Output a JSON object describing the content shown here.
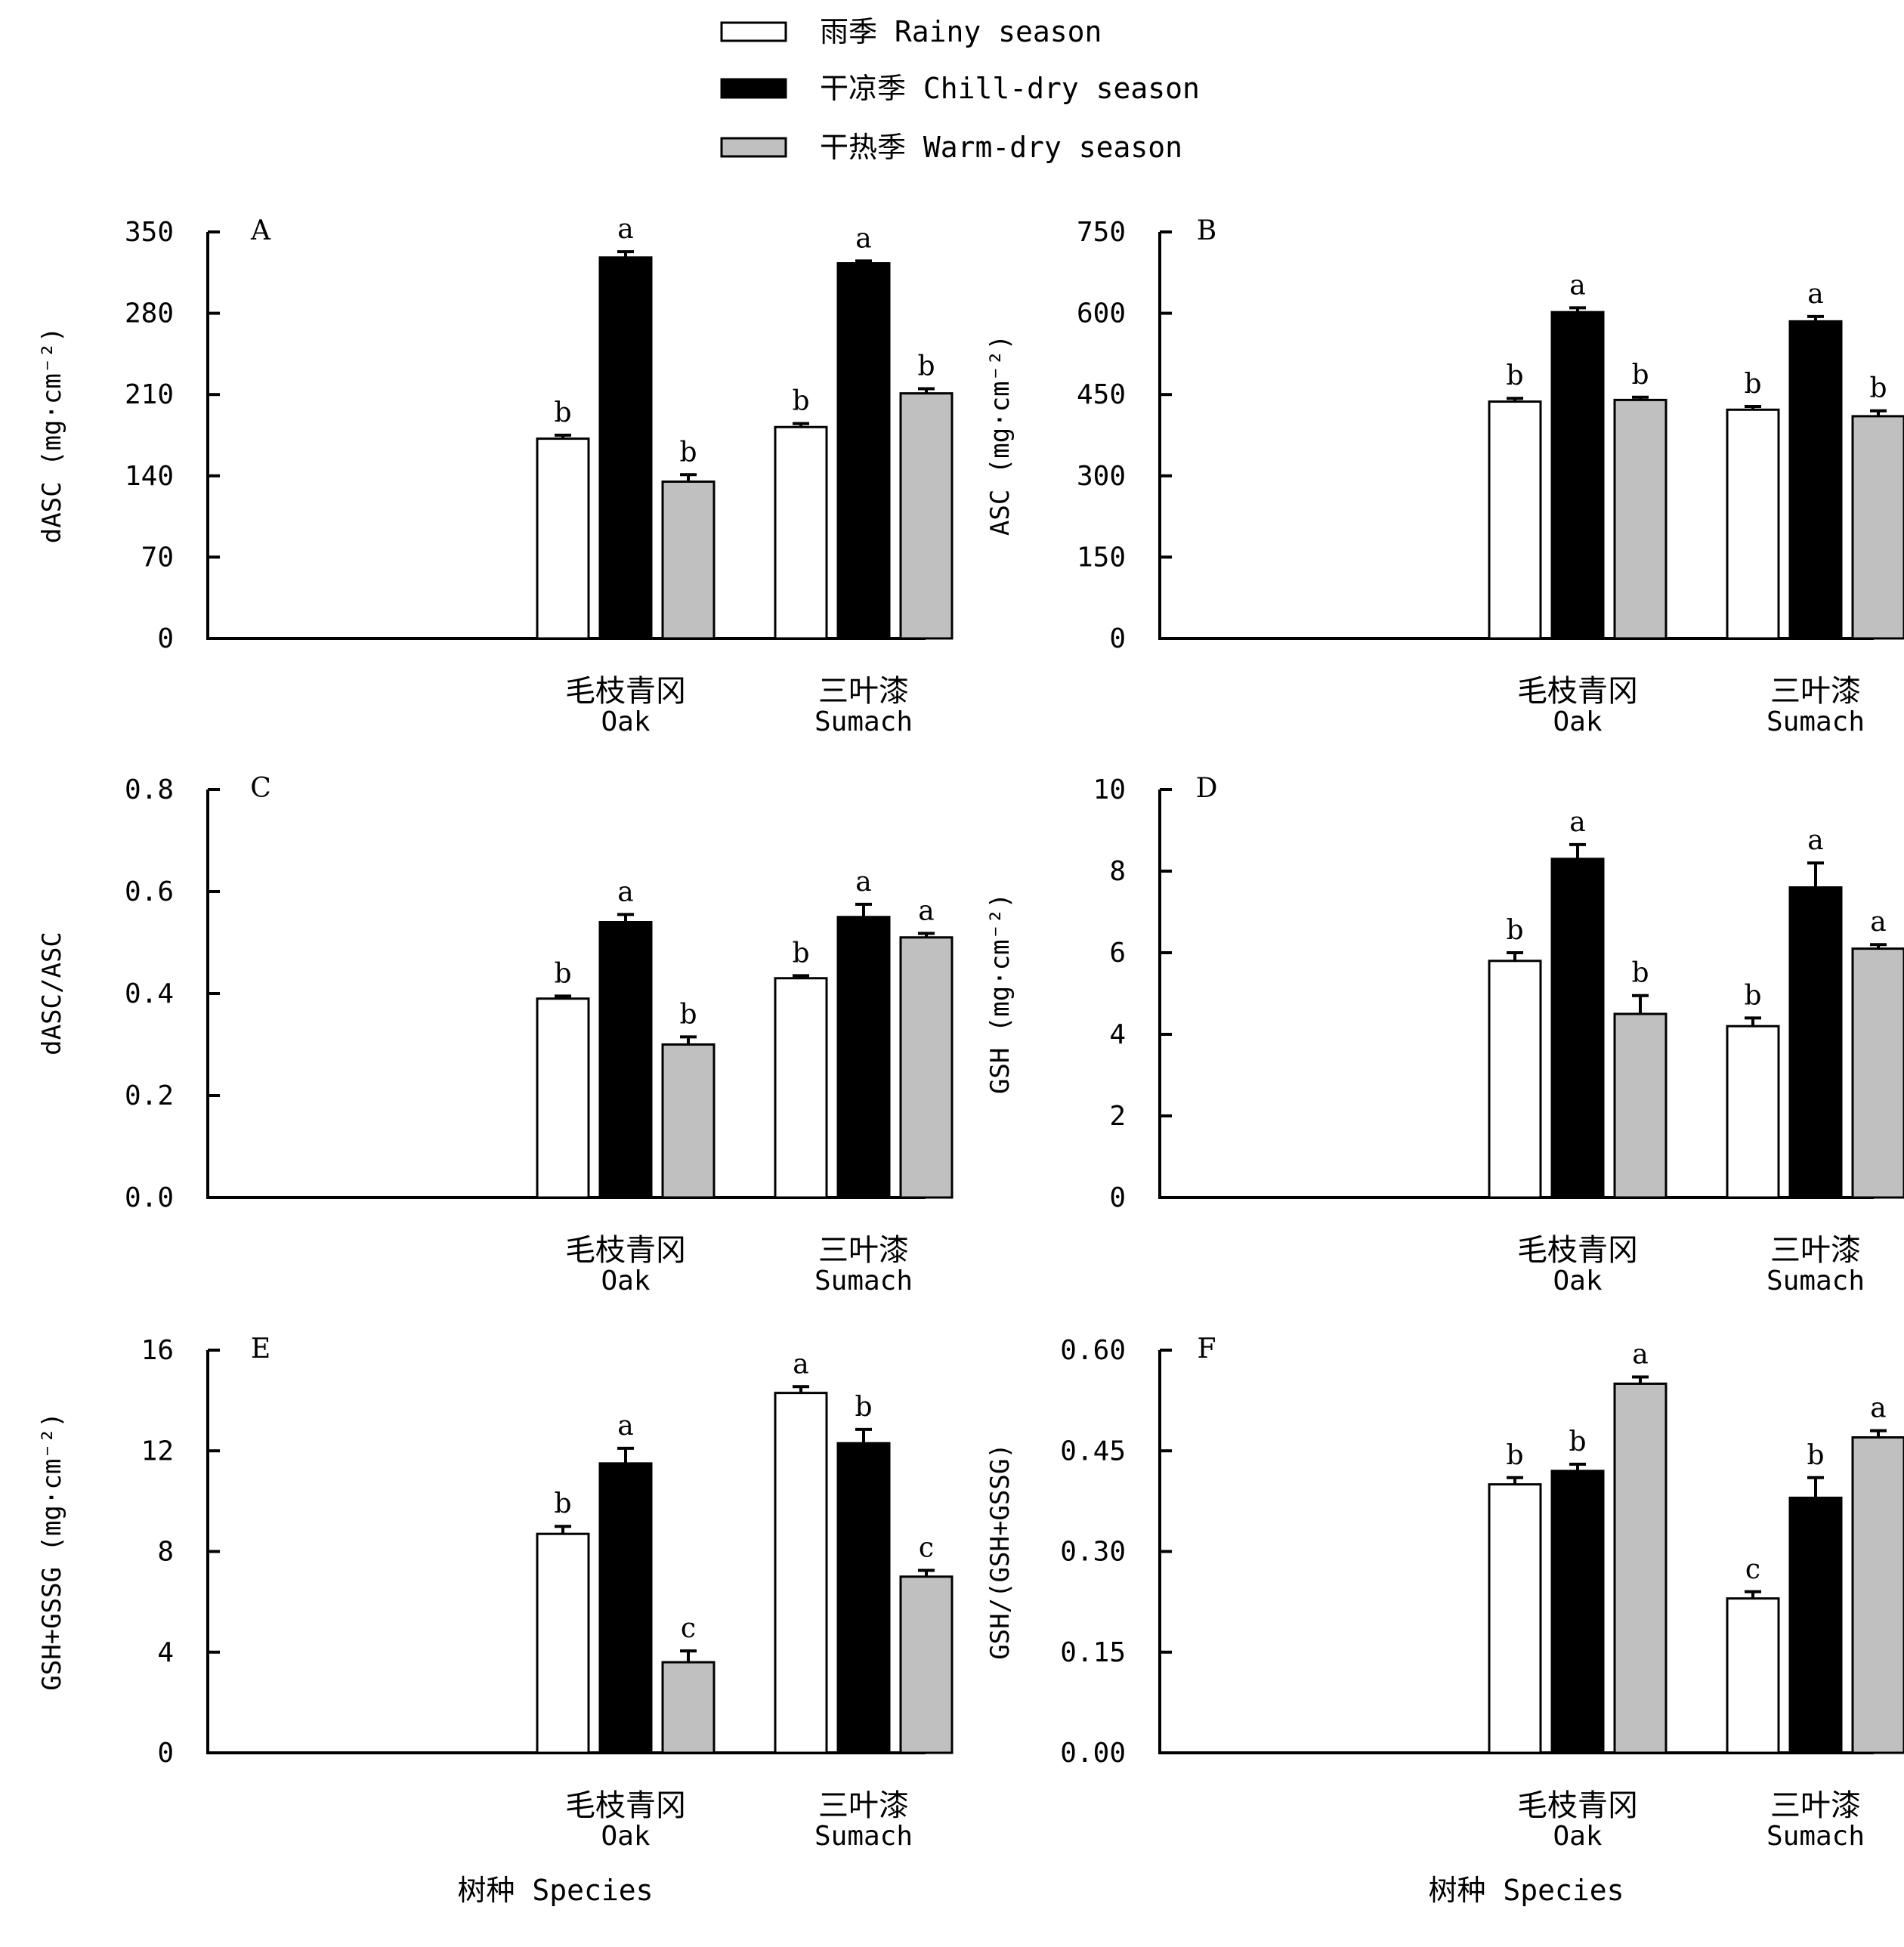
{
  "colors": {
    "rainy": "#ffffff",
    "chill_dry": "#000000",
    "warm_dry": "#c0c0c0",
    "axis": "#000000"
  },
  "legend": {
    "items": [
      {
        "key": "rainy",
        "label": "雨季 Rainy season"
      },
      {
        "key": "chill_dry",
        "label": "干凉季 Chill-dry season"
      },
      {
        "key": "warm_dry",
        "label": "干热季 Warm-dry season"
      }
    ]
  },
  "x_title": "树种 Species",
  "chart_data": [
    {
      "type": "bar",
      "panel": "A",
      "ylabel": "dASC (mg·cm⁻²)",
      "ylim": [
        0,
        350
      ],
      "yticks": [
        "0",
        "70",
        "140",
        "210",
        "280",
        "350"
      ],
      "categories": [
        {
          "zh": "毛枝青冈",
          "en": "Oak"
        },
        {
          "zh": "三叶漆",
          "en": "Sumach"
        }
      ],
      "series": [
        {
          "name": "雨季 Rainy season",
          "key": "rainy",
          "values": [
            172,
            182
          ],
          "errors": [
            3,
            3
          ],
          "letters": [
            "b",
            "b"
          ]
        },
        {
          "name": "干凉季 Chill-dry season",
          "key": "chill_dry",
          "values": [
            328,
            323
          ],
          "errors": [
            5,
            2
          ],
          "letters": [
            "a",
            "a"
          ]
        },
        {
          "name": "干热季 Warm-dry season",
          "key": "warm_dry",
          "values": [
            135,
            211
          ],
          "errors": [
            6,
            4
          ],
          "letters": [
            "b",
            "b"
          ]
        }
      ]
    },
    {
      "type": "bar",
      "panel": "B",
      "ylabel": "ASC (mg·cm⁻²)",
      "ylim": [
        0,
        750
      ],
      "yticks": [
        "0",
        "150",
        "300",
        "450",
        "600",
        "750"
      ],
      "categories": [
        {
          "zh": "毛枝青冈",
          "en": "Oak"
        },
        {
          "zh": "三叶漆",
          "en": "Sumach"
        }
      ],
      "series": [
        {
          "name": "雨季 Rainy season",
          "key": "rainy",
          "values": [
            437,
            422
          ],
          "errors": [
            6,
            6
          ],
          "letters": [
            "b",
            "b"
          ]
        },
        {
          "name": "干凉季 Chill-dry season",
          "key": "chill_dry",
          "values": [
            602,
            585
          ],
          "errors": [
            8,
            9
          ],
          "letters": [
            "a",
            "a"
          ]
        },
        {
          "name": "干热季 Warm-dry season",
          "key": "warm_dry",
          "values": [
            440,
            410
          ],
          "errors": [
            5,
            10
          ],
          "letters": [
            "b",
            "b"
          ]
        }
      ]
    },
    {
      "type": "bar",
      "panel": "C",
      "ylabel": "dASC/ASC",
      "ylim": [
        0,
        0.8
      ],
      "yticks": [
        "0.0",
        "0.2",
        "0.4",
        "0.6",
        "0.8"
      ],
      "categories": [
        {
          "zh": "毛枝青冈",
          "en": "Oak"
        },
        {
          "zh": "三叶漆",
          "en": "Sumach"
        }
      ],
      "series": [
        {
          "name": "雨季 Rainy season",
          "key": "rainy",
          "values": [
            0.39,
            0.43
          ],
          "errors": [
            0.005,
            0.005
          ],
          "letters": [
            "b",
            "b"
          ]
        },
        {
          "name": "干凉季 Chill-dry season",
          "key": "chill_dry",
          "values": [
            0.54,
            0.55
          ],
          "errors": [
            0.015,
            0.025
          ],
          "letters": [
            "a",
            "a"
          ]
        },
        {
          "name": "干热季 Warm-dry season",
          "key": "warm_dry",
          "values": [
            0.3,
            0.51
          ],
          "errors": [
            0.015,
            0.008
          ],
          "letters": [
            "b",
            "a"
          ]
        }
      ]
    },
    {
      "type": "bar",
      "panel": "D",
      "ylabel": "GSH (mg·cm⁻²)",
      "ylim": [
        0,
        10
      ],
      "yticks": [
        "0",
        "2",
        "4",
        "6",
        "8",
        "10"
      ],
      "categories": [
        {
          "zh": "毛枝青冈",
          "en": "Oak"
        },
        {
          "zh": "三叶漆",
          "en": "Sumach"
        }
      ],
      "series": [
        {
          "name": "雨季 Rainy season",
          "key": "rainy",
          "values": [
            5.8,
            4.2
          ],
          "errors": [
            0.2,
            0.2
          ],
          "letters": [
            "b",
            "b"
          ]
        },
        {
          "name": "干凉季 Chill-dry season",
          "key": "chill_dry",
          "values": [
            8.3,
            7.6
          ],
          "errors": [
            0.35,
            0.6
          ],
          "letters": [
            "a",
            "a"
          ]
        },
        {
          "name": "干热季 Warm-dry season",
          "key": "warm_dry",
          "values": [
            4.5,
            6.1
          ],
          "errors": [
            0.45,
            0.1
          ],
          "letters": [
            "b",
            "a"
          ]
        }
      ]
    },
    {
      "type": "bar",
      "panel": "E",
      "ylabel": "GSH+GSSG (mg·cm⁻²)",
      "ylim": [
        0,
        16
      ],
      "yticks": [
        "0",
        "4",
        "8",
        "12",
        "16"
      ],
      "categories": [
        {
          "zh": "毛枝青冈",
          "en": "Oak"
        },
        {
          "zh": "三叶漆",
          "en": "Sumach"
        }
      ],
      "series": [
        {
          "name": "雨季 Rainy season",
          "key": "rainy",
          "values": [
            8.7,
            14.3
          ],
          "errors": [
            0.3,
            0.25
          ],
          "letters": [
            "b",
            "a"
          ]
        },
        {
          "name": "干凉季 Chill-dry season",
          "key": "chill_dry",
          "values": [
            11.5,
            12.3
          ],
          "errors": [
            0.6,
            0.55
          ],
          "letters": [
            "a",
            "b"
          ]
        },
        {
          "name": "干热季 Warm-dry season",
          "key": "warm_dry",
          "values": [
            3.6,
            7.0
          ],
          "errors": [
            0.45,
            0.25
          ],
          "letters": [
            "c",
            "c"
          ]
        }
      ]
    },
    {
      "type": "bar",
      "panel": "F",
      "ylabel": "GSH/(GSH+GSSG)",
      "ylim": [
        0,
        0.6
      ],
      "yticks": [
        "0.00",
        "0.15",
        "0.30",
        "0.45",
        "0.60"
      ],
      "categories": [
        {
          "zh": "毛枝青冈",
          "en": "Oak"
        },
        {
          "zh": "三叶漆",
          "en": "Sumach"
        }
      ],
      "series": [
        {
          "name": "雨季 Rainy season",
          "key": "rainy",
          "values": [
            0.4,
            0.23
          ],
          "errors": [
            0.01,
            0.01
          ],
          "letters": [
            "b",
            "c"
          ]
        },
        {
          "name": "干凉季 Chill-dry season",
          "key": "chill_dry",
          "values": [
            0.42,
            0.38
          ],
          "errors": [
            0.01,
            0.03
          ],
          "letters": [
            "b",
            "b"
          ]
        },
        {
          "name": "干热季 Warm-dry season",
          "key": "warm_dry",
          "values": [
            0.55,
            0.47
          ],
          "errors": [
            0.01,
            0.01
          ],
          "letters": [
            "a",
            "a"
          ]
        }
      ]
    }
  ]
}
